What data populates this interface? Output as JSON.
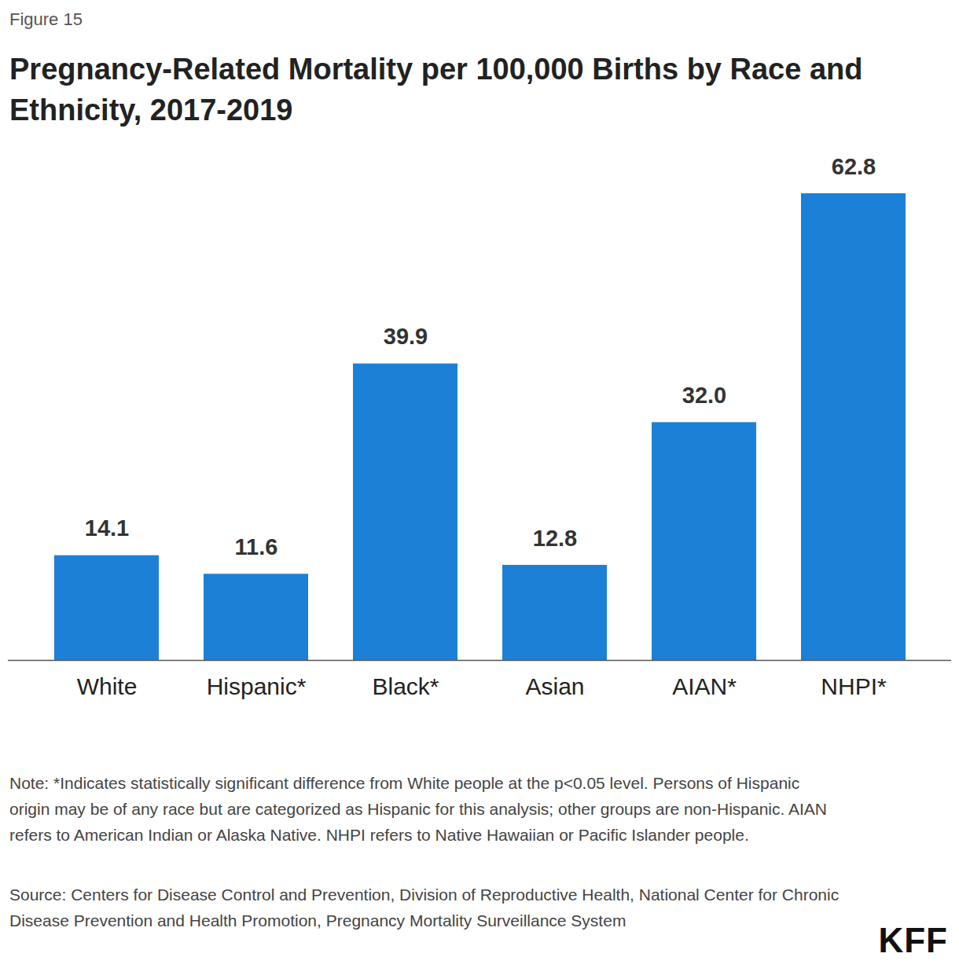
{
  "chart_data": {
    "type": "bar",
    "figure_label": "Figure 15",
    "title": "Pregnancy-Related Mortality per 100,000 Births by Race and Ethnicity, 2017-2019",
    "categories": [
      "White",
      "Hispanic*",
      "Black*",
      "Asian",
      "AIAN*",
      "NHPI*"
    ],
    "values": [
      14.1,
      11.6,
      39.9,
      12.8,
      32.0,
      62.8
    ],
    "value_labels": [
      "14.1",
      "11.6",
      "39.9",
      "12.8",
      "32.0",
      "62.8"
    ],
    "color": "#1c80d6",
    "ylim": [
      0,
      62.8
    ],
    "data_labels": true,
    "tick_labels": "x",
    "grid": false,
    "note": "Note: *Indicates statistically significant difference from White people at the p<0.05 level. Persons of Hispanic origin may be of any race but are categorized as Hispanic for this analysis; other groups are non-Hispanic. AIAN refers to American Indian or Alaska Native. NHPI refers to Native Hawaiian or Pacific Islander people.",
    "source": "Source: Centers for Disease Control and Prevention, Division of Reproductive Health, National Center for Chronic Disease Prevention and Health Promotion, Pregnancy Mortality Surveillance System",
    "logo": "KFF"
  }
}
